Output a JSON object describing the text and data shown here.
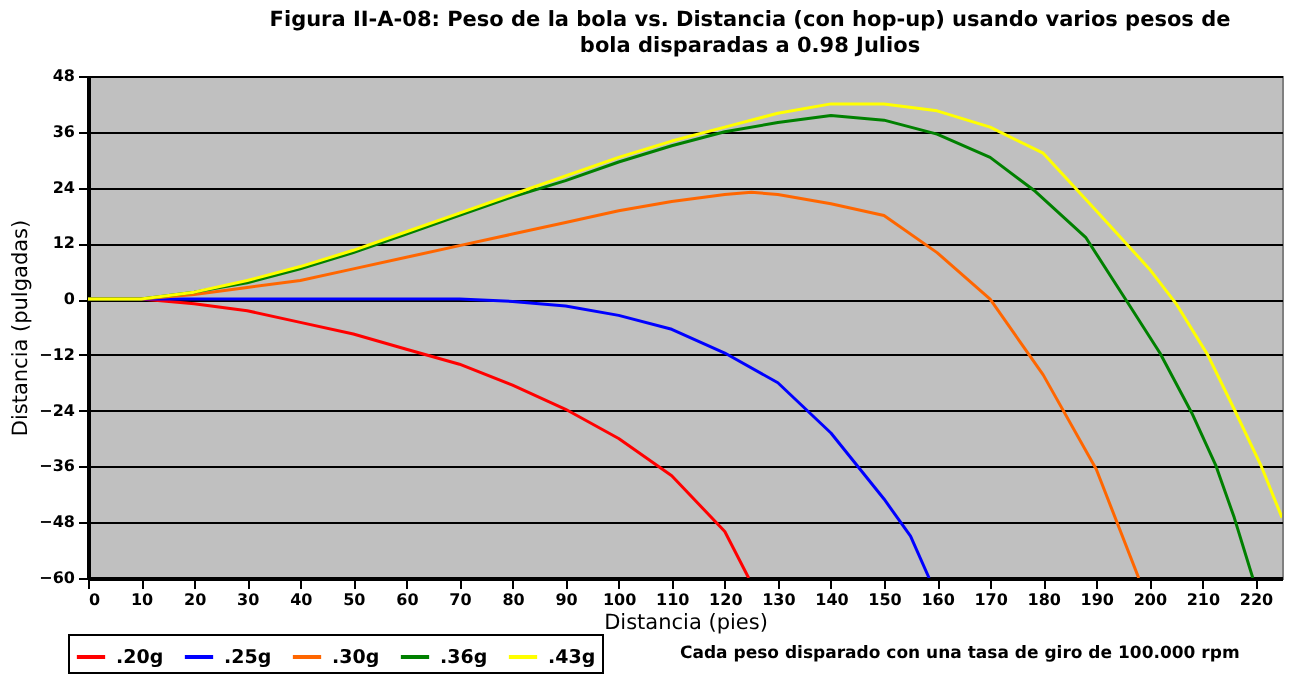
{
  "chart_data": {
    "type": "line",
    "title": "Figura II-A-08: Peso de la bola vs. Distancia (con hop-up) usando varios pesos de bola disparadas a 0.98 Julios",
    "xlabel": "Distancia (pies)",
    "ylabel": "Distancia (pulgadas)",
    "xlim": [
      0,
      225
    ],
    "xticks": [
      0,
      10,
      20,
      30,
      40,
      50,
      60,
      70,
      80,
      90,
      100,
      110,
      120,
      130,
      140,
      150,
      160,
      170,
      180,
      190,
      200,
      210,
      220
    ],
    "ylim": [
      -60,
      48
    ],
    "yticks": [
      -60,
      -48,
      -36,
      -24,
      -12,
      0,
      12,
      24,
      36,
      48
    ],
    "grid": "y",
    "legend": "bottom",
    "annotations": [
      "Cada peso disparado con una tasa de giro de 100.000 rpm"
    ],
    "series": [
      {
        "name": ".20g",
        "color": "#ff0000",
        "x": [
          10,
          20,
          30,
          40,
          50,
          60,
          70,
          80,
          90,
          100,
          110,
          120,
          124.5
        ],
        "values": [
          0,
          -1,
          -2.5,
          -5,
          -7.5,
          -10.8,
          -14,
          -18.5,
          -23.7,
          -30,
          -38,
          -50,
          -60
        ]
      },
      {
        "name": ".25g",
        "color": "#0000ff",
        "x": [
          0,
          70,
          80,
          90,
          100,
          110,
          120,
          130,
          140,
          150,
          155,
          158.5
        ],
        "values": [
          0,
          0,
          -0.5,
          -1.5,
          -3.5,
          -6.5,
          -11.6,
          -18,
          -28.8,
          -43,
          -51,
          -60
        ]
      },
      {
        "name": ".30g",
        "color": "#ff6600",
        "x": [
          0,
          10,
          20,
          30,
          40,
          50,
          60,
          70,
          80,
          90,
          100,
          110,
          120,
          125,
          130,
          140,
          150,
          160,
          170,
          180,
          190,
          198
        ],
        "values": [
          0,
          0,
          1,
          2.5,
          4,
          6.5,
          9,
          11.5,
          14,
          16.5,
          19,
          21,
          22.5,
          23,
          22.5,
          20.5,
          18,
          10,
          0,
          -16.3,
          -36.6,
          -60
        ]
      },
      {
        "name": ".36g",
        "color": "#008000",
        "x": [
          0,
          10,
          20,
          30,
          40,
          50,
          60,
          70,
          80,
          90,
          100,
          110,
          120,
          130,
          140,
          150,
          160,
          170,
          178.5,
          188,
          196,
          202,
          208,
          212.5,
          216,
          219.5
        ],
        "values": [
          0,
          0,
          1.5,
          3.5,
          6.5,
          10,
          14,
          18,
          22,
          25.5,
          29.5,
          33,
          36,
          38,
          39.5,
          38.5,
          35.5,
          30.5,
          23.2,
          13.3,
          -0.9,
          -11.6,
          -24.5,
          -35.7,
          -47,
          -60
        ]
      },
      {
        "name": ".43g",
        "color": "#ffff00",
        "x": [
          0,
          10,
          20,
          30,
          40,
          50,
          60,
          70,
          80,
          90,
          100,
          110,
          120,
          130,
          140,
          150,
          160,
          170,
          180,
          190,
          200,
          205,
          211,
          216,
          221,
          225
        ],
        "values": [
          0,
          0,
          1.5,
          4,
          7,
          10.5,
          14.5,
          18.5,
          22.5,
          26.5,
          30.5,
          34,
          37,
          40,
          42,
          42,
          40.5,
          37,
          31.4,
          19,
          6.5,
          -0.9,
          -12,
          -23.7,
          -35.7,
          -47
        ]
      }
    ]
  }
}
